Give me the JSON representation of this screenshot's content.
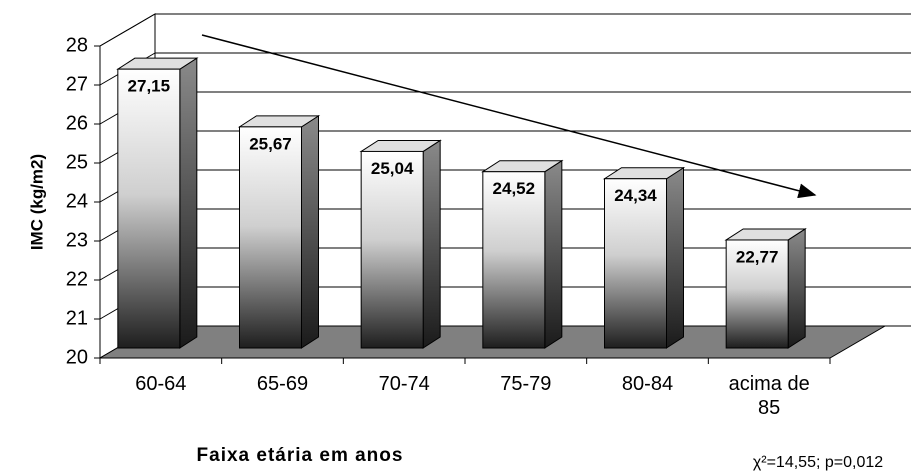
{
  "chart_data": {
    "type": "bar3d",
    "ylabel": "IMC (kg/m2)",
    "xlabel": "Faixa etária em anos",
    "annotation": "χ²=14,55; p=0,012",
    "categories": [
      "60-64",
      "65-69",
      "70-74",
      "75-79",
      "80-84",
      "acima de 85"
    ],
    "values": [
      27.15,
      25.67,
      25.04,
      24.52,
      24.34,
      22.77
    ],
    "value_labels": [
      "27,15",
      "25,67",
      "25,04",
      "24,52",
      "24,34",
      "22,77"
    ],
    "ylim": [
      20,
      28
    ],
    "yticks": [
      20,
      21,
      22,
      23,
      24,
      25,
      26,
      27,
      28
    ],
    "grid": true
  }
}
